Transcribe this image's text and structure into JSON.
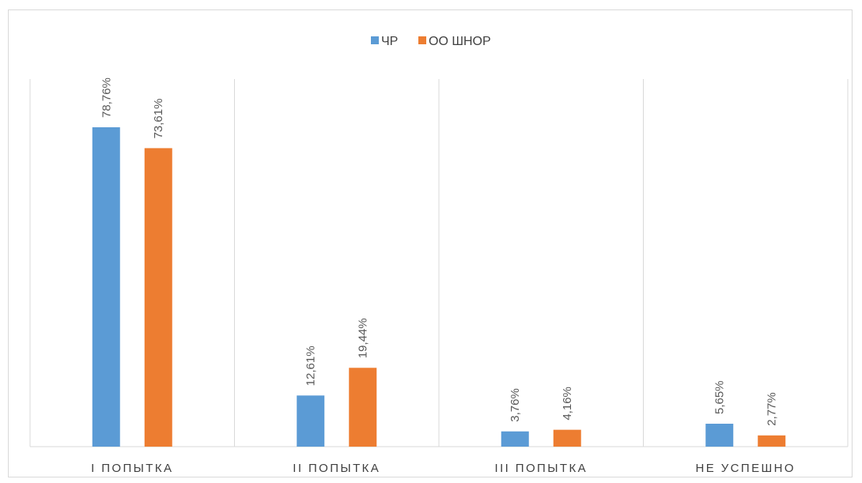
{
  "chart_data": {
    "type": "bar",
    "categories": [
      "I ПОПЫТКА",
      "II ПОПЫТКА",
      "III ПОПЫТКА",
      "НЕ УСПЕШНО"
    ],
    "series": [
      {
        "name": "ЧР",
        "values": [
          78.76,
          12.61,
          3.76,
          5.65
        ],
        "labels": [
          "78,76%",
          "12,61%",
          "3,76%",
          "5,65%"
        ],
        "color": "#5b9bd5"
      },
      {
        "name": "ОО ШНОР",
        "values": [
          73.61,
          19.44,
          4.16,
          2.77
        ],
        "labels": [
          "73,61%",
          "19,44%",
          "4,16%",
          "2,77%"
        ],
        "color": "#ed7d31"
      }
    ],
    "ylim": [
      0,
      100
    ],
    "grid": "vertical category separators",
    "legend": "top-center",
    "title": "",
    "xlabel": "",
    "ylabel": ""
  }
}
